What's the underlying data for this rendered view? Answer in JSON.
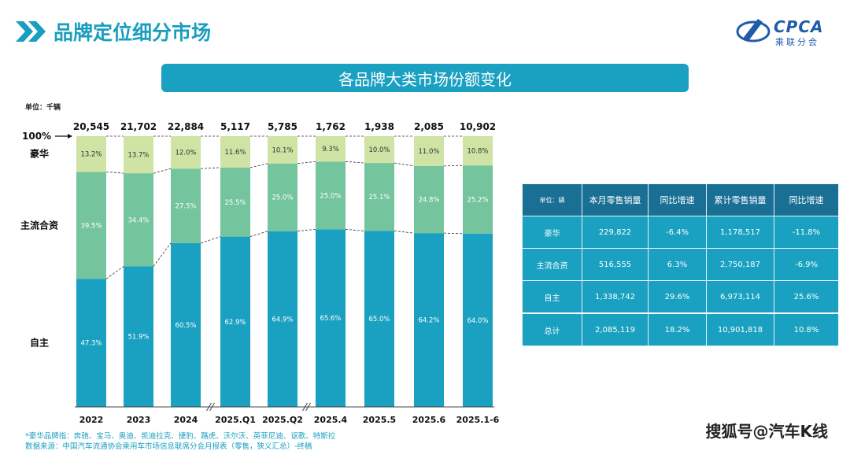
{
  "header": {
    "title": "品牌定位细分市场",
    "banner": "各品牌大类市场份额变化",
    "unit_label": "单位：千辆",
    "logo_text": "CPCA",
    "logo_sub": "乘联分会",
    "watermark": "搜狐号@汽车K线"
  },
  "colors": {
    "luxury": "#cfe3a4",
    "joint_venture": "#74c49e",
    "domestic": "#1aa0c0",
    "banner": "#1aa0c0",
    "table_head": "#1a6f95",
    "table_body": "#1aa0c0"
  },
  "chart_data": {
    "type": "bar",
    "stacked": true,
    "normalized": true,
    "categories": [
      "2022",
      "2023",
      "2024",
      "2025.Q1",
      "2025.Q2",
      "2025.4",
      "2025.5",
      "2025.6",
      "2025.1-6"
    ],
    "totals": [
      "20,545",
      "21,702",
      "22,884",
      "5,117",
      "5,785",
      "1,762",
      "1,938",
      "2,085",
      "10,902"
    ],
    "series": [
      {
        "name": "自主",
        "values": [
          47.3,
          51.9,
          60.5,
          62.9,
          64.9,
          65.6,
          65.0,
          64.2,
          64.0
        ],
        "labels": [
          "47.3%",
          "51.9%",
          "60.5%",
          "62.9%",
          "64.9%",
          "65.6%",
          "65.0%",
          "64.2%",
          "64.0%"
        ]
      },
      {
        "name": "主流合资",
        "values": [
          39.5,
          34.4,
          27.5,
          25.5,
          25.0,
          25.0,
          25.1,
          24.8,
          25.2
        ],
        "labels": [
          "39.5%",
          "34.4%",
          "27.5%",
          "25.5%",
          "25.0%",
          "25.0%",
          "25.1%",
          "24.8%",
          "25.2%"
        ]
      },
      {
        "name": "豪华",
        "values": [
          13.2,
          13.7,
          12.0,
          11.6,
          10.1,
          9.3,
          10.0,
          11.0,
          10.8
        ],
        "labels": [
          "13.2%",
          "13.7%",
          "12.0%",
          "11.6%",
          "10.1%",
          "9.3%",
          "10.0%",
          "11.0%",
          "10.8%"
        ]
      }
    ],
    "top_label": "100%",
    "ylim": [
      0,
      100
    ],
    "axis_breaks_after": [
      "2024",
      "2025.Q2"
    ],
    "legend": "left"
  },
  "table": {
    "headers": [
      "单位：辆",
      "本月零售销量",
      "同比增速",
      "累计零售销量",
      "同比增速"
    ],
    "rows": [
      [
        "豪华",
        "229,822",
        "-6.4%",
        "1,178,517",
        "-11.8%"
      ],
      [
        "主流合资",
        "516,555",
        "6.3%",
        "2,750,187",
        "-6.9%"
      ],
      [
        "自主",
        "1,338,742",
        "29.6%",
        "6,973,114",
        "25.6%"
      ]
    ],
    "total": [
      "总计",
      "2,085,119",
      "18.2%",
      "10,901,818",
      "10.8%"
    ]
  },
  "notes": {
    "luxury_brands": "*豪华品牌指：奔驰、宝马、奥迪、凯迪拉克、捷豹、路虎、沃尔沃、英菲尼迪、讴歌、特斯拉",
    "source": "数据来源：中国汽车流通协会乘用车市场信息联席分会月报表（零售，狭义汇总）-终稿"
  }
}
